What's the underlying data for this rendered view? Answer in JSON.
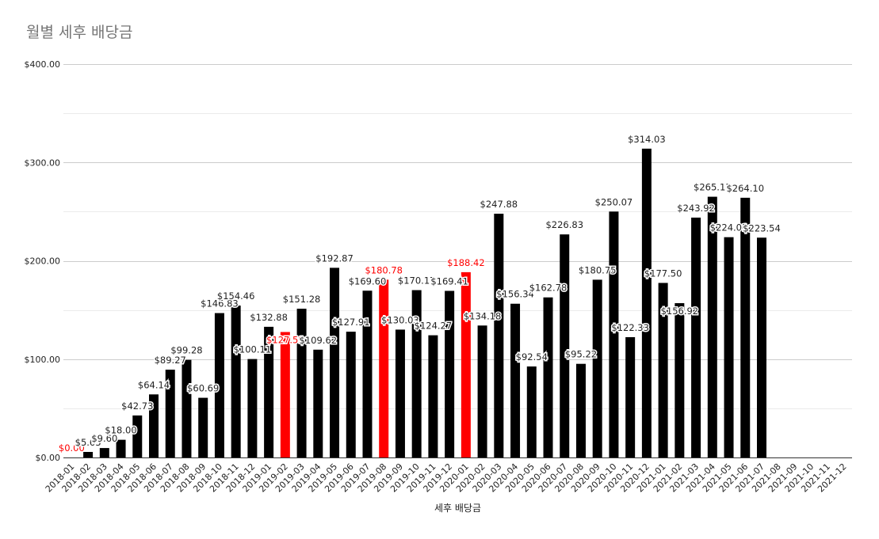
{
  "chart_data": {
    "type": "bar",
    "title": "월별 세후 배당금",
    "xlabel": "세후 배당금",
    "ylabel": "",
    "ylim": [
      0,
      400
    ],
    "yticks": [
      "$0.00",
      "$100.00",
      "$200.00",
      "$300.00",
      "$400.00"
    ],
    "grid": true,
    "legend": "none",
    "categories": [
      "2018-01",
      "2018-02",
      "2018-03",
      "2018-04",
      "2018-05",
      "2018-06",
      "2018-07",
      "2018-08",
      "2018-09",
      "2018-10",
      "2018-11",
      "2018-12",
      "2019-01",
      "2019-02",
      "2019-03",
      "2019-04",
      "2019-05",
      "2019-06",
      "2019-07",
      "2019-08",
      "2019-09",
      "2019-10",
      "2019-11",
      "2019-12",
      "2020-01",
      "2020-02",
      "2020-03",
      "2020-04",
      "2020-05",
      "2020-06",
      "2020-07",
      "2020-08",
      "2020-09",
      "2020-10",
      "2020-11",
      "2020-12",
      "2021-01",
      "2021-02",
      "2021-03",
      "2021-04",
      "2021-05",
      "2021-06",
      "2021-07",
      "2021-08",
      "2021-09",
      "2021-10",
      "2021-11",
      "2021-12"
    ],
    "values": [
      0.0,
      5.63,
      9.6,
      18.0,
      42.73,
      64.14,
      89.27,
      99.28,
      60.69,
      146.83,
      154.46,
      100.11,
      132.88,
      127.59,
      151.28,
      109.62,
      192.87,
      127.91,
      169.6,
      180.78,
      130.03,
      170.17,
      124.27,
      169.41,
      188.42,
      134.18,
      247.88,
      156.34,
      92.54,
      162.78,
      226.83,
      95.22,
      180.75,
      250.07,
      122.33,
      314.03,
      177.5,
      156.92,
      243.92,
      265.13,
      224.01,
      264.1,
      223.54,
      null,
      null,
      null,
      null,
      null
    ],
    "labels": [
      "$0.00",
      "$5.63",
      "$9.60",
      "$18.00",
      "$42.73",
      "$64.14",
      "$89.27",
      "$99.28",
      "$60.69",
      "$146.83",
      "$154.46",
      "$100.11",
      "$132.88",
      "$127.59",
      "$151.28",
      "$109.62",
      "$192.87",
      "$127.91",
      "$169.60",
      "$180.78",
      "$130.03",
      "$170.17",
      "$124.27",
      "$169.41",
      "$188.42",
      "$134.18",
      "$247.88",
      "$156.34",
      "$92.54",
      "$162.78",
      "$226.83",
      "$95.22",
      "$180.75",
      "$250.07",
      "$122.33",
      "$314.03",
      "$177.50",
      "$156.92",
      "$243.92",
      "$265.13",
      "$224.01",
      "$264.10",
      "$223.54",
      "",
      "",
      "",
      "",
      ""
    ],
    "highlighted": [
      "2018-01",
      "2019-02",
      "2019-08",
      "2020-01"
    ],
    "colors": {
      "bar": "#000000",
      "highlight": "#ff0000",
      "label": "#222222",
      "highlight_label": "#ff0000"
    }
  }
}
